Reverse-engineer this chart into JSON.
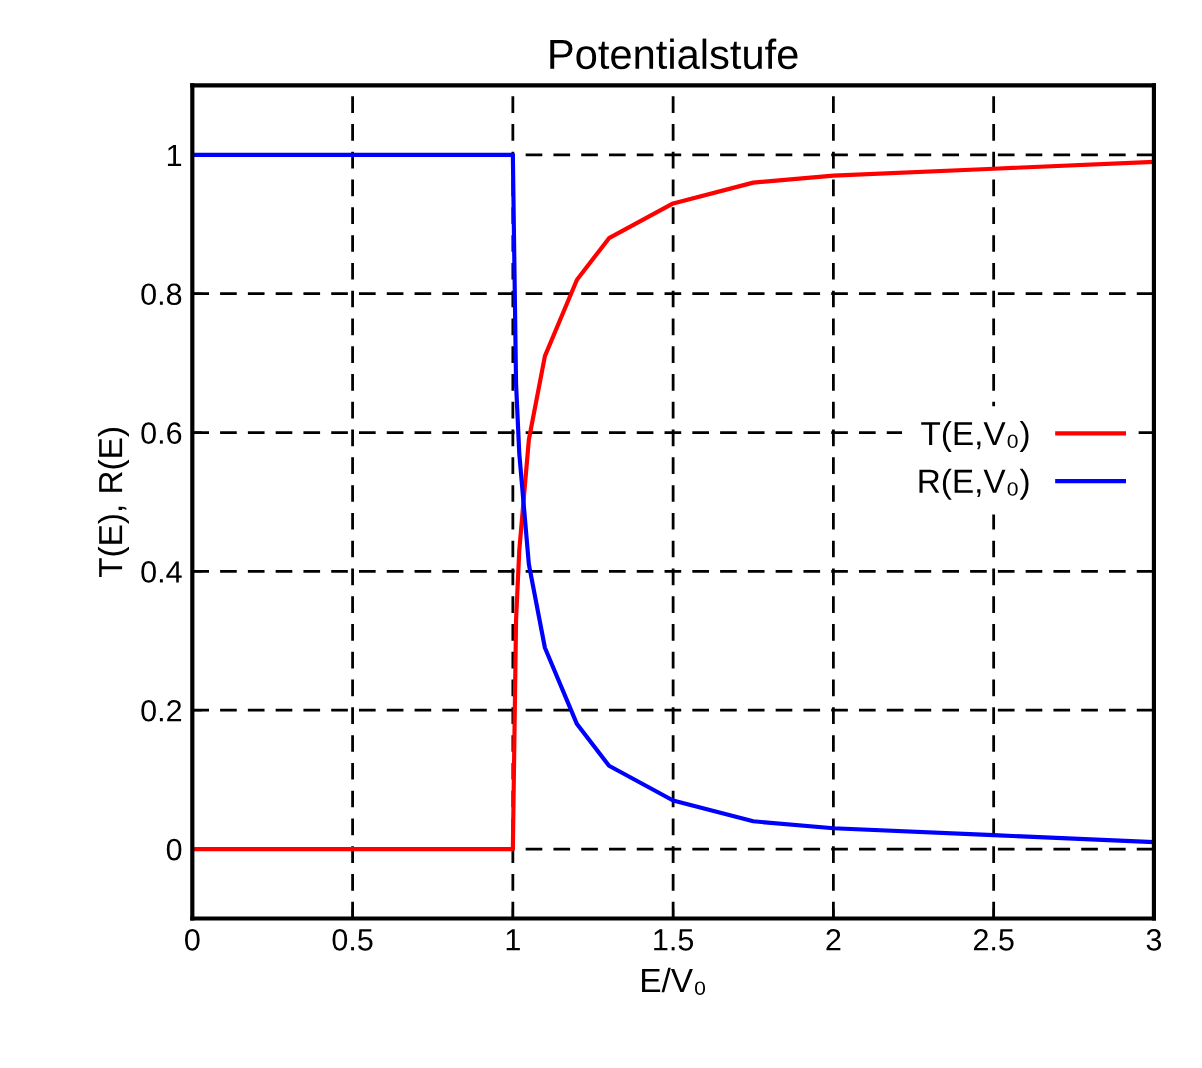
{
  "chart_data": {
    "type": "line",
    "title": "Potentialstufe",
    "xlabel": "E/V₀",
    "ylabel": "T(E), R(E)",
    "xlim": [
      0,
      3
    ],
    "ylim": [
      -0.1,
      1.1
    ],
    "xticks": [
      0,
      0.5,
      1,
      1.5,
      2,
      2.5,
      3
    ],
    "yticks": [
      0,
      0.2,
      0.4,
      0.6,
      0.8,
      1
    ],
    "grid": true,
    "legend": "right",
    "line_style": "solid",
    "x": [
      0,
      0.5,
      0.999,
      1,
      1.01,
      1.02,
      1.05,
      1.1,
      1.2,
      1.3,
      1.5,
      1.75,
      2,
      2.5,
      3
    ],
    "series": [
      {
        "name": "T(E,V₀)",
        "color": "#ff0000",
        "values": [
          0,
          0,
          0,
          0,
          0.33,
          0.43,
          0.59,
          0.71,
          0.82,
          0.88,
          0.93,
          0.96,
          0.97,
          0.98,
          0.99
        ]
      },
      {
        "name": "R(E,V₀)",
        "color": "#0000ff",
        "values": [
          1,
          1,
          1,
          1,
          0.67,
          0.57,
          0.41,
          0.29,
          0.18,
          0.12,
          0.07,
          0.04,
          0.03,
          0.02,
          0.01
        ]
      }
    ]
  }
}
